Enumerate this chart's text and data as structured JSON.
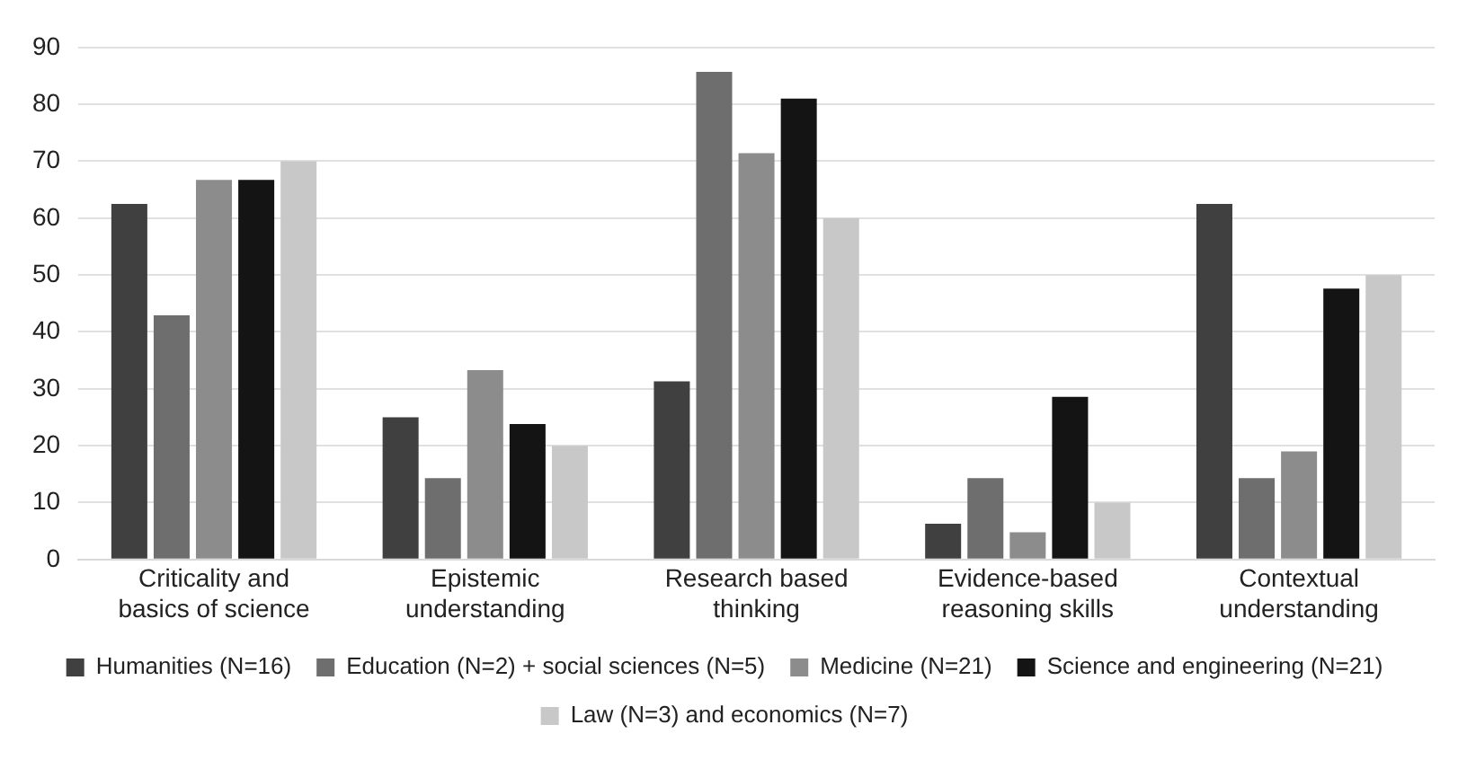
{
  "chart_data": {
    "type": "bar",
    "categories": [
      "Criticality and basics of science",
      "Epistemic understanding",
      "Research based thinking",
      "Evidence-based reasoning skills",
      "Contextual understanding"
    ],
    "series": [
      {
        "name": "Humanities (N=16)",
        "color": "#404040",
        "values": [
          62.5,
          25,
          31.3,
          6.3,
          62.5
        ]
      },
      {
        "name": "Education (N=2) + social sciences (N=5)",
        "color": "#6e6e6e",
        "values": [
          42.9,
          14.3,
          85.7,
          14.3,
          14.3
        ]
      },
      {
        "name": "Medicine (N=21)",
        "color": "#8c8c8c",
        "values": [
          66.7,
          33.3,
          71.4,
          4.8,
          19
        ]
      },
      {
        "name": "Science and engineering (N=21)",
        "color": "#141414",
        "values": [
          66.7,
          23.8,
          81,
          28.6,
          47.6
        ]
      },
      {
        "name": "Law (N=3) and economics (N=7)",
        "color": "#c8c8c8",
        "values": [
          70,
          20,
          60,
          10,
          50
        ]
      }
    ],
    "ylim": [
      0,
      90
    ],
    "yticks": [
      0,
      10,
      20,
      30,
      40,
      50,
      60,
      70,
      80,
      90
    ],
    "grid": "y",
    "legend": "bottom"
  }
}
